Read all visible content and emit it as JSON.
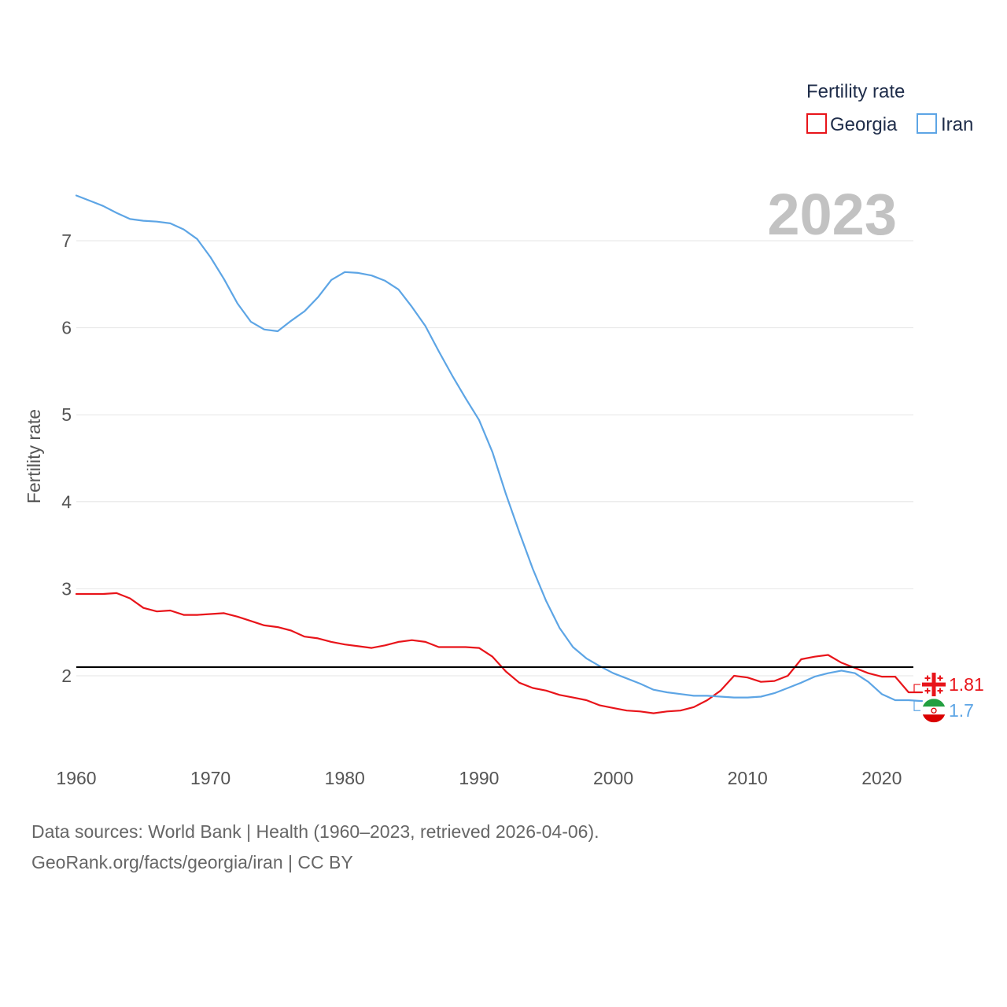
{
  "chart_data": {
    "type": "line",
    "title": "",
    "year": "2023",
    "ylabel": "Fertility rate",
    "xlabel": "",
    "xlim": [
      1960,
      2023
    ],
    "ylim": [
      1.0,
      7.6
    ],
    "x_ticks": [
      "1960",
      "1970",
      "1980",
      "1990",
      "2000",
      "2010",
      "2020"
    ],
    "y_ticks": [
      "2",
      "3",
      "4",
      "5",
      "6",
      "7"
    ],
    "grid": true,
    "legend_position": "top-right",
    "legend_title": "Fertility rate",
    "reference_line": {
      "value": 2.1,
      "color": "#000000"
    },
    "x": [
      1960,
      1961,
      1962,
      1963,
      1964,
      1965,
      1966,
      1967,
      1968,
      1969,
      1970,
      1971,
      1972,
      1973,
      1974,
      1975,
      1976,
      1977,
      1978,
      1979,
      1980,
      1981,
      1982,
      1983,
      1984,
      1985,
      1986,
      1987,
      1988,
      1989,
      1990,
      1991,
      1992,
      1993,
      1994,
      1995,
      1996,
      1997,
      1998,
      1999,
      2000,
      2001,
      2002,
      2003,
      2004,
      2005,
      2006,
      2007,
      2008,
      2009,
      2010,
      2011,
      2012,
      2013,
      2014,
      2015,
      2016,
      2017,
      2018,
      2019,
      2020,
      2021,
      2022,
      2023
    ],
    "series": [
      {
        "name": "Georgia",
        "color": "#e8141a",
        "end_label": "1.81",
        "flag_icon": "georgia-flag-icon",
        "values": [
          2.94,
          2.94,
          2.94,
          2.95,
          2.89,
          2.78,
          2.74,
          2.75,
          2.7,
          2.7,
          2.71,
          2.72,
          2.68,
          2.63,
          2.58,
          2.56,
          2.52,
          2.45,
          2.43,
          2.39,
          2.36,
          2.34,
          2.32,
          2.35,
          2.39,
          2.41,
          2.39,
          2.33,
          2.33,
          2.33,
          2.32,
          2.22,
          2.05,
          1.92,
          1.86,
          1.83,
          1.78,
          1.75,
          1.72,
          1.66,
          1.63,
          1.6,
          1.59,
          1.57,
          1.59,
          1.6,
          1.64,
          1.72,
          1.83,
          2.0,
          1.98,
          1.93,
          1.94,
          2.0,
          2.19,
          2.22,
          2.24,
          2.15,
          2.09,
          2.03,
          1.99,
          1.99,
          1.81,
          1.81
        ]
      },
      {
        "name": "Iran",
        "color": "#5da5e5",
        "end_label": "1.7",
        "flag_icon": "iran-flag-icon",
        "values": [
          7.52,
          7.46,
          7.4,
          7.32,
          7.25,
          7.23,
          7.22,
          7.2,
          7.13,
          7.02,
          6.81,
          6.56,
          6.28,
          6.07,
          5.98,
          5.96,
          6.08,
          6.19,
          6.35,
          6.55,
          6.64,
          6.63,
          6.6,
          6.54,
          6.44,
          6.24,
          6.02,
          5.73,
          5.45,
          5.19,
          4.94,
          4.57,
          4.09,
          3.65,
          3.23,
          2.86,
          2.55,
          2.33,
          2.2,
          2.11,
          2.03,
          1.97,
          1.91,
          1.84,
          1.81,
          1.79,
          1.77,
          1.77,
          1.76,
          1.75,
          1.75,
          1.76,
          1.8,
          1.86,
          1.92,
          1.99,
          2.03,
          2.06,
          2.03,
          1.93,
          1.79,
          1.72,
          1.72,
          1.71
        ]
      }
    ]
  },
  "footer": {
    "sources": "Data sources: World Bank | Health (1960–2023, retrieved 2026-04-06).",
    "link": "GeoRank.org/facts/georgia/iran | CC BY"
  }
}
